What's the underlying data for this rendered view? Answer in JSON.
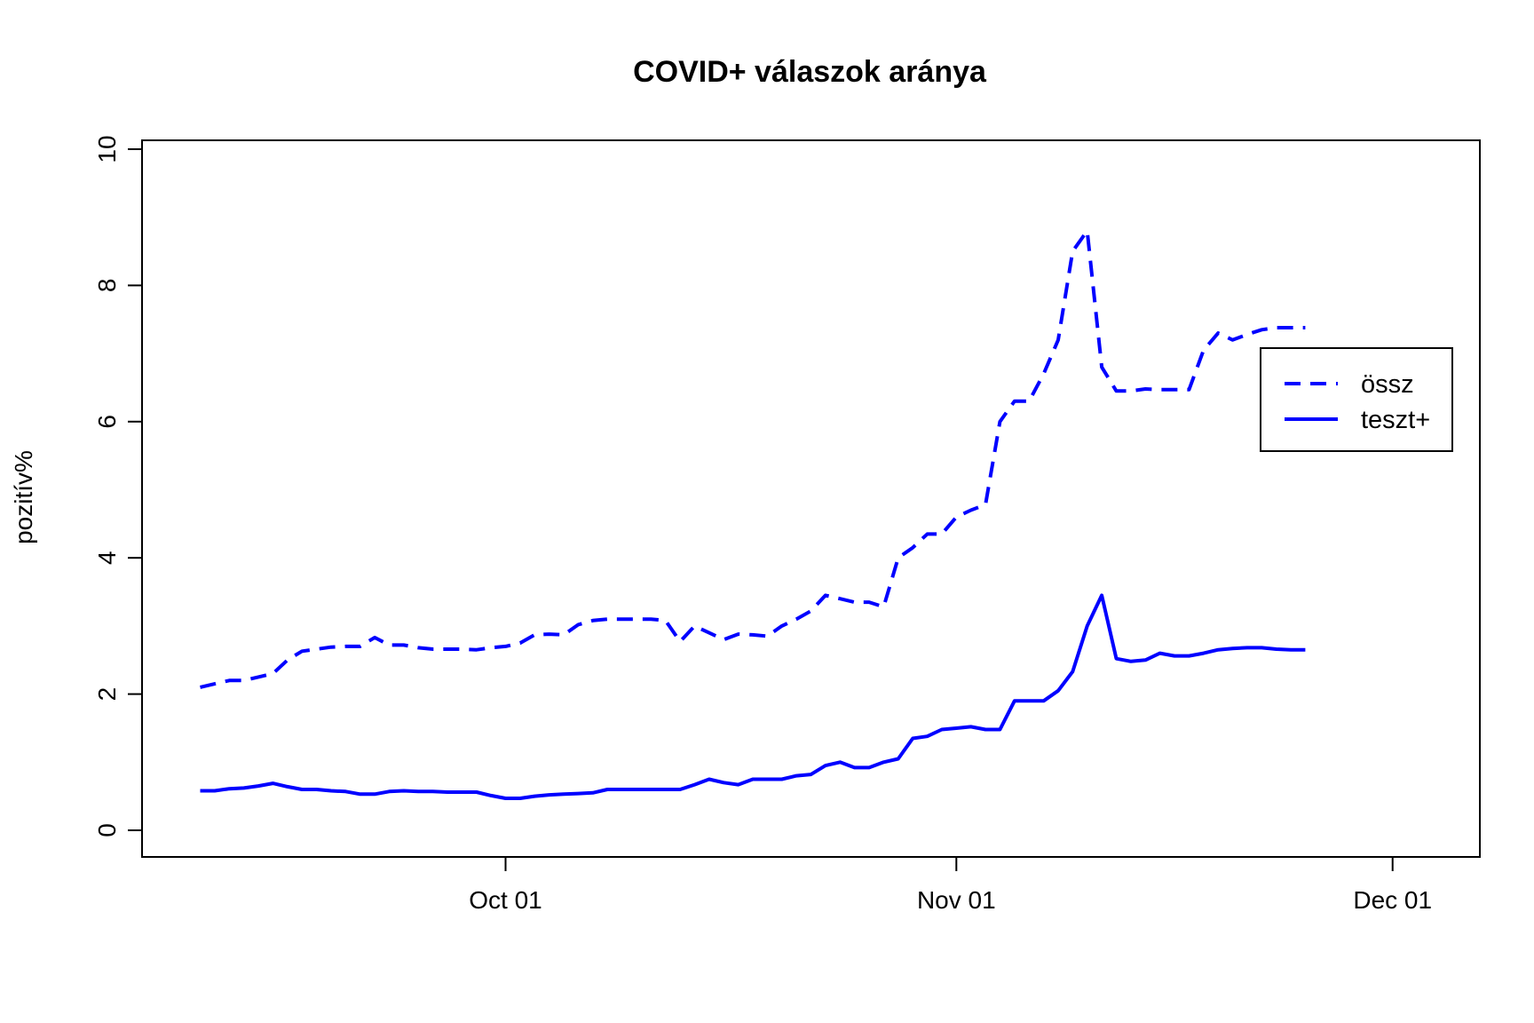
{
  "chart_data": {
    "type": "line",
    "title": "COVID+ válaszok aránya",
    "xlabel": "",
    "ylabel": "pozitív%",
    "x_ticks": [
      "Oct 01",
      "Nov 01",
      "Dec 01"
    ],
    "y_ticks": [
      "0",
      "2",
      "4",
      "6",
      "8",
      "10"
    ],
    "ylim": [
      0,
      10
    ],
    "xlim": [
      "2020-09-06",
      "2020-12-07"
    ],
    "grid": false,
    "legend_position": "right",
    "x": [
      "2020-09-10",
      "2020-09-11",
      "2020-09-12",
      "2020-09-13",
      "2020-09-14",
      "2020-09-15",
      "2020-09-16",
      "2020-09-17",
      "2020-09-18",
      "2020-09-19",
      "2020-09-20",
      "2020-09-21",
      "2020-09-22",
      "2020-09-23",
      "2020-09-24",
      "2020-09-25",
      "2020-09-26",
      "2020-09-27",
      "2020-09-28",
      "2020-09-29",
      "2020-09-30",
      "2020-10-01",
      "2020-10-02",
      "2020-10-03",
      "2020-10-04",
      "2020-10-05",
      "2020-10-06",
      "2020-10-07",
      "2020-10-08",
      "2020-10-09",
      "2020-10-10",
      "2020-10-11",
      "2020-10-12",
      "2020-10-13",
      "2020-10-14",
      "2020-10-15",
      "2020-10-16",
      "2020-10-17",
      "2020-10-18",
      "2020-10-19",
      "2020-10-20",
      "2020-10-21",
      "2020-10-22",
      "2020-10-23",
      "2020-10-24",
      "2020-10-25",
      "2020-10-26",
      "2020-10-27",
      "2020-10-28",
      "2020-10-29",
      "2020-10-30",
      "2020-10-31",
      "2020-11-01",
      "2020-11-02",
      "2020-11-03",
      "2020-11-04",
      "2020-11-05",
      "2020-11-06",
      "2020-11-07",
      "2020-11-08",
      "2020-11-09",
      "2020-11-10",
      "2020-11-11",
      "2020-11-12",
      "2020-11-13",
      "2020-11-14",
      "2020-11-15",
      "2020-11-16",
      "2020-11-17",
      "2020-11-18",
      "2020-11-19",
      "2020-11-20",
      "2020-11-21",
      "2020-11-22",
      "2020-11-23",
      "2020-11-24",
      "2020-11-25"
    ],
    "series": [
      {
        "name": "össz",
        "color": "#0000ff",
        "dash": "dashed",
        "values": [
          2.1,
          2.15,
          2.2,
          2.2,
          2.25,
          2.3,
          2.5,
          2.63,
          2.66,
          2.69,
          2.7,
          2.7,
          2.83,
          2.72,
          2.72,
          2.68,
          2.66,
          2.66,
          2.66,
          2.65,
          2.68,
          2.7,
          2.75,
          2.87,
          2.88,
          2.87,
          3.02,
          3.08,
          3.1,
          3.1,
          3.1,
          3.1,
          3.08,
          2.77,
          3.0,
          2.9,
          2.8,
          2.88,
          2.87,
          2.85,
          3.0,
          3.1,
          3.22,
          3.45,
          3.4,
          3.35,
          3.35,
          3.28,
          4.0,
          4.15,
          4.35,
          4.35,
          4.6,
          4.7,
          4.78,
          6.0,
          6.3,
          6.3,
          6.7,
          7.2,
          8.5,
          8.8,
          6.8,
          6.45,
          6.45,
          6.48,
          6.47,
          6.47,
          6.47,
          7.05,
          7.3,
          7.2,
          7.28,
          7.35,
          7.38,
          7.38,
          7.38
        ]
      },
      {
        "name": "teszt+",
        "color": "#0000ff",
        "dash": "solid",
        "values": [
          0.58,
          0.58,
          0.61,
          0.62,
          0.65,
          0.69,
          0.64,
          0.6,
          0.6,
          0.58,
          0.57,
          0.53,
          0.53,
          0.57,
          0.58,
          0.57,
          0.57,
          0.56,
          0.56,
          0.56,
          0.51,
          0.47,
          0.47,
          0.5,
          0.52,
          0.53,
          0.54,
          0.55,
          0.6,
          0.6,
          0.6,
          0.6,
          0.6,
          0.6,
          0.67,
          0.75,
          0.7,
          0.67,
          0.75,
          0.75,
          0.75,
          0.8,
          0.82,
          0.95,
          1.0,
          0.92,
          0.92,
          1.0,
          1.05,
          1.35,
          1.38,
          1.48,
          1.5,
          1.52,
          1.48,
          1.48,
          1.9,
          1.9,
          1.9,
          2.05,
          2.33,
          3.0,
          3.45,
          2.52,
          2.48,
          2.5,
          2.6,
          2.56,
          2.56,
          2.6,
          2.65,
          2.67,
          2.68,
          2.68,
          2.66,
          2.65,
          2.65
        ]
      }
    ]
  }
}
